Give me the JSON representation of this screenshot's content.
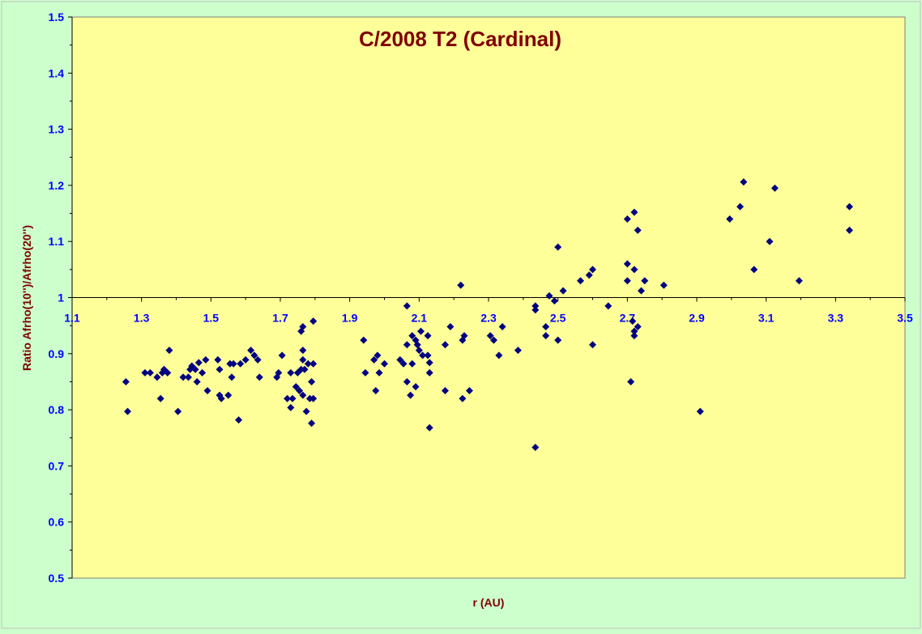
{
  "chart_data": {
    "type": "scatter",
    "title": "C/2008 T2 (Cardinal)",
    "xlabel": "r (AU)",
    "ylabel": "Ratio Afrho(10'')/Afrho(20'')",
    "xlim": [
      1.1,
      3.5
    ],
    "ylim": [
      0.5,
      1.5
    ],
    "x_ticks": [
      "1.1",
      "1.3",
      "1.5",
      "1.7",
      "1.9",
      "2.1",
      "2.3",
      "2.5",
      "2.7",
      "2.9",
      "3.1",
      "3.3",
      "3.5"
    ],
    "y_ticks": [
      "0.5",
      "0.6",
      "0.7",
      "0.8",
      "0.9",
      "1",
      "1.1",
      "1.2",
      "1.3",
      "1.4",
      "1.5"
    ],
    "x_axis_crosses_at": 1.0,
    "grid": false,
    "legend": "none",
    "colors": {
      "plot_bg": "#ffff99",
      "outer_bg": "#ccffcc",
      "marker": "#000080",
      "title": "#800000",
      "tick": "#0000ff"
    },
    "series": [
      {
        "marker": "diamond",
        "points": [
          [
            1.255,
            0.85
          ],
          [
            1.26,
            0.797
          ],
          [
            1.31,
            0.866
          ],
          [
            1.325,
            0.866
          ],
          [
            1.345,
            0.858
          ],
          [
            1.355,
            0.82
          ],
          [
            1.36,
            0.866
          ],
          [
            1.365,
            0.872
          ],
          [
            1.375,
            0.866
          ],
          [
            1.38,
            0.906
          ],
          [
            1.405,
            0.797
          ],
          [
            1.42,
            0.858
          ],
          [
            1.435,
            0.858
          ],
          [
            1.44,
            0.872
          ],
          [
            1.445,
            0.878
          ],
          [
            1.455,
            0.872
          ],
          [
            1.46,
            0.85
          ],
          [
            1.465,
            0.884
          ],
          [
            1.475,
            0.866
          ],
          [
            1.485,
            0.889
          ],
          [
            1.49,
            0.834
          ],
          [
            1.52,
            0.889
          ],
          [
            1.525,
            0.826
          ],
          [
            1.525,
            0.872
          ],
          [
            1.53,
            0.82
          ],
          [
            1.55,
            0.826
          ],
          [
            1.555,
            0.882
          ],
          [
            1.56,
            0.858
          ],
          [
            1.565,
            0.882
          ],
          [
            1.58,
            0.782
          ],
          [
            1.585,
            0.882
          ],
          [
            1.6,
            0.889
          ],
          [
            1.615,
            0.906
          ],
          [
            1.625,
            0.897
          ],
          [
            1.635,
            0.889
          ],
          [
            1.64,
            0.858
          ],
          [
            1.69,
            0.858
          ],
          [
            1.695,
            0.866
          ],
          [
            1.705,
            0.897
          ],
          [
            1.72,
            0.82
          ],
          [
            1.73,
            0.866
          ],
          [
            1.73,
            0.804
          ],
          [
            1.735,
            0.82
          ],
          [
            1.745,
            0.841
          ],
          [
            1.75,
            0.866
          ],
          [
            1.755,
            0.834
          ],
          [
            1.76,
            0.872
          ],
          [
            1.76,
            0.94
          ],
          [
            1.765,
            0.906
          ],
          [
            1.765,
            0.889
          ],
          [
            1.765,
            0.948
          ],
          [
            1.765,
            0.826
          ],
          [
            1.77,
            0.872
          ],
          [
            1.775,
            0.797
          ],
          [
            1.78,
            0.882
          ],
          [
            1.785,
            0.82
          ],
          [
            1.79,
            0.85
          ],
          [
            1.79,
            0.776
          ],
          [
            1.795,
            0.958
          ],
          [
            1.795,
            0.882
          ],
          [
            1.795,
            0.82
          ],
          [
            1.94,
            0.924
          ],
          [
            1.945,
            0.866
          ],
          [
            1.97,
            0.889
          ],
          [
            1.975,
            0.834
          ],
          [
            1.98,
            0.897
          ],
          [
            1.985,
            0.866
          ],
          [
            2,
            0.882
          ],
          [
            2.045,
            0.889
          ],
          [
            2.055,
            0.882
          ],
          [
            2.065,
            0.985
          ],
          [
            2.065,
            0.916
          ],
          [
            2.065,
            0.85
          ],
          [
            2.075,
            0.826
          ],
          [
            2.08,
            0.882
          ],
          [
            2.08,
            0.932
          ],
          [
            2.09,
            0.924
          ],
          [
            2.09,
            0.841
          ],
          [
            2.095,
            0.916
          ],
          [
            2.1,
            0.906
          ],
          [
            2.105,
            0.94
          ],
          [
            2.11,
            0.897
          ],
          [
            2.125,
            0.932
          ],
          [
            2.125,
            0.897
          ],
          [
            2.13,
            0.884
          ],
          [
            2.13,
            0.866
          ],
          [
            2.13,
            0.768
          ],
          [
            2.175,
            0.916
          ],
          [
            2.175,
            0.834
          ],
          [
            2.19,
            0.948
          ],
          [
            2.22,
            1.022
          ],
          [
            2.225,
            0.924
          ],
          [
            2.225,
            0.82
          ],
          [
            2.23,
            0.932
          ],
          [
            2.245,
            0.834
          ],
          [
            2.305,
            0.932
          ],
          [
            2.315,
            0.924
          ],
          [
            2.33,
            0.897
          ],
          [
            2.34,
            0.948
          ],
          [
            2.385,
            0.906
          ],
          [
            2.435,
            0.985
          ],
          [
            2.435,
            0.978
          ],
          [
            2.435,
            0.733
          ],
          [
            2.465,
            0.932
          ],
          [
            2.465,
            0.948
          ],
          [
            2.475,
            1.003
          ],
          [
            2.49,
            0.994
          ],
          [
            2.5,
            0.924
          ],
          [
            2.5,
            1.09
          ],
          [
            2.515,
            1.012
          ],
          [
            2.565,
            1.03
          ],
          [
            2.59,
            1.04
          ],
          [
            2.6,
            1.05
          ],
          [
            2.6,
            0.916
          ],
          [
            2.645,
            0.985
          ],
          [
            2.7,
            1.14
          ],
          [
            2.7,
            1.03
          ],
          [
            2.7,
            1.06
          ],
          [
            2.71,
            0.85
          ],
          [
            2.715,
            0.958
          ],
          [
            2.72,
            1.05
          ],
          [
            2.72,
            0.94
          ],
          [
            2.72,
            0.932
          ],
          [
            2.72,
            1.152
          ],
          [
            2.73,
            0.948
          ],
          [
            2.73,
            1.12
          ],
          [
            2.74,
            1.012
          ],
          [
            2.75,
            1.03
          ],
          [
            2.805,
            1.022
          ],
          [
            2.91,
            0.797
          ],
          [
            2.995,
            1.14
          ],
          [
            3.025,
            1.162
          ],
          [
            3.035,
            1.206
          ],
          [
            3.065,
            1.05
          ],
          [
            3.11,
            1.1
          ],
          [
            3.125,
            1.195
          ],
          [
            3.195,
            1.03
          ],
          [
            3.34,
            1.162
          ],
          [
            3.34,
            1.12
          ]
        ]
      }
    ]
  }
}
